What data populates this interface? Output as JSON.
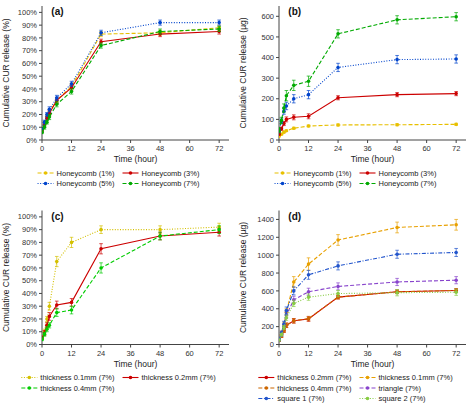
{
  "chart_data": [
    {
      "type": "line",
      "title": "(a)",
      "x_label": "Time (hour)",
      "y_label": "Cumulative CUR release (%)",
      "x": [
        0,
        1,
        2,
        3,
        6,
        12,
        24,
        48,
        72
      ],
      "xlim": [
        0,
        76
      ],
      "ylim": [
        0,
        105
      ],
      "xticks": [
        0,
        12,
        24,
        36,
        48,
        60,
        72
      ],
      "yticks": [
        {
          "value": 0,
          "label": "0%"
        },
        {
          "value": 10,
          "label": "10%"
        },
        {
          "value": 20,
          "label": "20%"
        },
        {
          "value": 30,
          "label": "30%"
        },
        {
          "value": 40,
          "label": "40%"
        },
        {
          "value": 50,
          "label": "50%"
        },
        {
          "value": 60,
          "label": "60%"
        },
        {
          "value": 70,
          "label": "70%"
        },
        {
          "value": 80,
          "label": "80%"
        },
        {
          "value": 90,
          "label": "90%"
        },
        {
          "value": 100,
          "label": "100%"
        }
      ],
      "legend": "bottom",
      "series": [
        {
          "name": "Honeycomb (1%)",
          "color": "#e8c000",
          "line_style": "dashed",
          "marker": "circle",
          "values": [
            8,
            13,
            18,
            22,
            31,
            42,
            83,
            84,
            88
          ],
          "errors": [
            1,
            1.5,
            1.5,
            2,
            2,
            2,
            2,
            2,
            2
          ]
        },
        {
          "name": "Honeycomb (3%)",
          "color": "#cc0000",
          "line_style": "solid",
          "marker": "circle",
          "values": [
            7,
            12,
            17,
            21,
            31,
            41,
            77,
            83,
            85
          ],
          "errors": [
            1,
            1.5,
            1.5,
            2,
            2,
            2,
            2,
            2,
            2
          ]
        },
        {
          "name": "Honeycomb (5%)",
          "color": "#0044cc",
          "line_style": "dotted",
          "marker": "circle",
          "values": [
            9,
            14,
            20,
            24,
            33,
            44,
            84,
            92,
            92
          ],
          "errors": [
            1,
            1.5,
            1.5,
            2,
            2,
            2,
            2,
            2,
            2
          ]
        },
        {
          "name": "Honeycomb (7%)",
          "color": "#00aa00",
          "line_style": "dashed",
          "marker": "circle",
          "values": [
            6,
            10,
            14,
            18,
            28,
            38,
            74,
            85,
            87
          ],
          "errors": [
            1,
            1.5,
            1.5,
            2,
            2,
            2,
            2,
            2,
            2
          ]
        }
      ]
    },
    {
      "type": "line",
      "title": "(b)",
      "x_label": "Time (hour)",
      "y_label": "Cumulative CUR release (µg)",
      "x": [
        0,
        1,
        2,
        3,
        6,
        12,
        24,
        48,
        72
      ],
      "xlim": [
        0,
        76
      ],
      "ylim": [
        0,
        650
      ],
      "xticks": [
        0,
        12,
        24,
        36,
        48,
        60,
        72
      ],
      "yticks": [
        0,
        100,
        200,
        300,
        400,
        500,
        600
      ],
      "legend": "bottom",
      "series": [
        {
          "name": "Honeycomb (1%)",
          "color": "#e8c000",
          "line_style": "dashed",
          "marker": "circle",
          "values": [
            18,
            28,
            38,
            45,
            57,
            68,
            73,
            74,
            76
          ],
          "errors": [
            3,
            4,
            4,
            4,
            5,
            5,
            5,
            5,
            5
          ]
        },
        {
          "name": "Honeycomb (3%)",
          "color": "#cc0000",
          "line_style": "solid",
          "marker": "circle",
          "values": [
            28,
            55,
            80,
            100,
            110,
            115,
            205,
            220,
            225
          ],
          "errors": [
            5,
            8,
            10,
            12,
            12,
            12,
            10,
            10,
            10
          ]
        },
        {
          "name": "Honeycomb (5%)",
          "color": "#0044cc",
          "line_style": "dotted",
          "marker": "circle",
          "values": [
            45,
            90,
            140,
            165,
            200,
            220,
            352,
            390,
            393
          ],
          "errors": [
            8,
            12,
            15,
            18,
            20,
            20,
            20,
            20,
            20
          ]
        },
        {
          "name": "Honeycomb (7%)",
          "color": "#00aa00",
          "line_style": "dashed",
          "marker": "circle",
          "values": [
            45,
            95,
            155,
            215,
            265,
            285,
            515,
            583,
            598
          ],
          "errors": [
            10,
            15,
            20,
            25,
            25,
            25,
            20,
            20,
            20
          ]
        }
      ]
    },
    {
      "type": "line",
      "title": "(c)",
      "x_label": "Time (hour)",
      "y_label": "Cumulative CUR release (%)",
      "x": [
        0,
        1,
        2,
        3,
        6,
        12,
        24,
        48,
        72
      ],
      "xlim": [
        0,
        76
      ],
      "ylim": [
        0,
        105
      ],
      "xticks": [
        0,
        12,
        24,
        36,
        48,
        60,
        72
      ],
      "yticks": [
        {
          "value": 0,
          "label": "0%"
        },
        {
          "value": 10,
          "label": "10%"
        },
        {
          "value": 20,
          "label": "20%"
        },
        {
          "value": 30,
          "label": "30%"
        },
        {
          "value": 40,
          "label": "40%"
        },
        {
          "value": 50,
          "label": "50%"
        },
        {
          "value": 60,
          "label": "60%"
        },
        {
          "value": 70,
          "label": "70%"
        },
        {
          "value": 80,
          "label": "80%"
        },
        {
          "value": 90,
          "label": "90%"
        },
        {
          "value": 100,
          "label": "100%"
        }
      ],
      "legend": "bottom",
      "series": [
        {
          "name": "thickness 0.1mm (7%)",
          "color": "#d4c000",
          "line_style": "dotted",
          "marker": "circle",
          "values": [
            5,
            10,
            20,
            30,
            65,
            80,
            90,
            90,
            92
          ],
          "errors": [
            1,
            2,
            2,
            3,
            4,
            4,
            3,
            3,
            3
          ]
        },
        {
          "name": "thickness 0.2mm (7%)",
          "color": "#cc0000",
          "line_style": "solid",
          "marker": "circle",
          "values": [
            5,
            9,
            15,
            22,
            31,
            33,
            75,
            85,
            88
          ],
          "errors": [
            1,
            2,
            2,
            3,
            3,
            3,
            4,
            3,
            3
          ]
        },
        {
          "name": "thickness 0.4mm (7%)",
          "color": "#00cc00",
          "line_style": "dashed",
          "marker": "circle",
          "values": [
            4,
            8,
            12,
            15,
            25,
            27,
            60,
            85,
            90
          ],
          "errors": [
            1,
            1.5,
            2,
            2,
            3,
            3,
            4,
            3,
            3
          ]
        }
      ]
    },
    {
      "type": "line",
      "title": "(d)",
      "x_label": "Time (hour)",
      "y_label": "Cumulative CUR release (µg)",
      "x": [
        0,
        1,
        2,
        3,
        6,
        12,
        24,
        48,
        72
      ],
      "xlim": [
        0,
        76
      ],
      "ylim": [
        0,
        1500
      ],
      "xticks": [
        0,
        12,
        24,
        36,
        48,
        60,
        72
      ],
      "yticks": [
        0,
        200,
        400,
        600,
        800,
        1000,
        1200,
        1400
      ],
      "legend": "bottom",
      "series": [
        {
          "name": "thickness 0.2mm (7%)",
          "color": "#cc0000",
          "line_style": "solid",
          "marker": "circle",
          "values": [
            45,
            95,
            155,
            215,
            265,
            285,
            530,
            590,
            605
          ],
          "errors": [
            10,
            15,
            20,
            25,
            25,
            25,
            20,
            20,
            20
          ]
        },
        {
          "name": "thickness 0.1mm (7%)",
          "color": "#e8a000",
          "line_style": "dashed",
          "marker": "circle",
          "values": [
            55,
            130,
            220,
            360,
            700,
            900,
            1170,
            1310,
            1340
          ],
          "errors": [
            10,
            20,
            30,
            40,
            60,
            70,
            60,
            60,
            60
          ]
        },
        {
          "name": "thickness 0.4mm (7%)",
          "color": "#cc6600",
          "line_style": "dashed",
          "marker": "circle",
          "values": [
            45,
            95,
            155,
            215,
            265,
            290,
            530,
            590,
            605
          ],
          "errors": [
            10,
            15,
            20,
            25,
            25,
            25,
            20,
            20,
            20
          ]
        },
        {
          "name": "triangle (7%)",
          "color": "#8844cc",
          "line_style": "dashed",
          "marker": "circle",
          "values": [
            50,
            110,
            200,
            330,
            500,
            590,
            650,
            700,
            720
          ],
          "errors": [
            10,
            18,
            25,
            35,
            40,
            40,
            40,
            40,
            40
          ]
        },
        {
          "name": "square 1 (7%)",
          "color": "#2255cc",
          "line_style": "dashdot",
          "marker": "circle",
          "values": [
            55,
            130,
            230,
            380,
            600,
            780,
            880,
            1010,
            1030
          ],
          "errors": [
            12,
            20,
            30,
            40,
            45,
            50,
            45,
            45,
            45
          ]
        },
        {
          "name": "square 2 (7%)",
          "color": "#88cc44",
          "line_style": "dotted",
          "marker": "circle",
          "values": [
            50,
            110,
            190,
            300,
            460,
            530,
            570,
            580,
            585
          ],
          "errors": [
            10,
            15,
            22,
            30,
            35,
            35,
            35,
            35,
            35
          ]
        }
      ]
    }
  ]
}
